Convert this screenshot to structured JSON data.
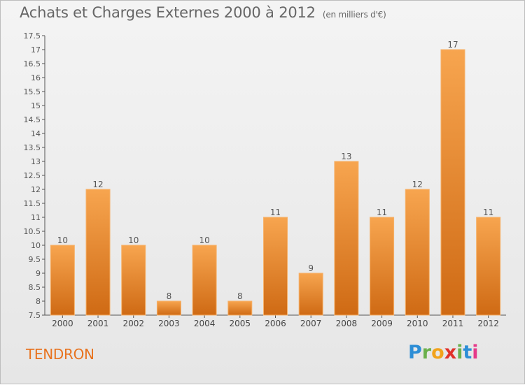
{
  "title": "Achats et Charges Externes 2000 à 2012",
  "subtitle": "(en milliers d'€)",
  "commune": "TENDRON",
  "logo": {
    "p": "P",
    "r": "r",
    "o": "o",
    "x": "x",
    "i": "i",
    "t": "t",
    "i2": "i"
  },
  "colors": {
    "bar_light": "#f7a54f",
    "bar_dark": "#cf6a14",
    "commune": "#e8731f"
  },
  "chart_data": {
    "type": "bar",
    "title": "Achats et Charges Externes 2000 à 2012",
    "subtitle": "(en milliers d'€)",
    "categories": [
      "2000",
      "2001",
      "2002",
      "2003",
      "2004",
      "2005",
      "2006",
      "2007",
      "2008",
      "2009",
      "2010",
      "2011",
      "2012"
    ],
    "values": [
      10,
      12,
      10,
      8,
      10,
      8,
      11,
      9,
      13,
      11,
      12,
      17,
      11
    ],
    "ylim": [
      7.5,
      17.5
    ],
    "yticks": [
      "7.5",
      "8",
      "8.5",
      "9",
      "9.5",
      "10",
      "10.5",
      "11",
      "11.5",
      "12",
      "12.5",
      "13",
      "13.5",
      "14",
      "14.5",
      "15",
      "15.5",
      "16",
      "16.5",
      "17",
      "17.5"
    ],
    "grid": false,
    "xlabel": "",
    "ylabel": ""
  }
}
